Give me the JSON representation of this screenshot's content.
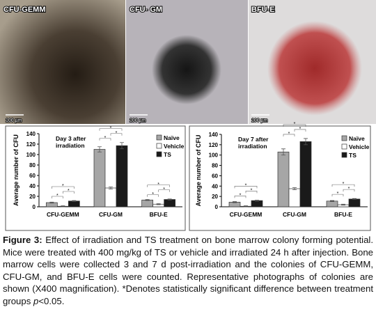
{
  "photos": [
    {
      "label": "CFU-GEMM",
      "scale": "100 µm"
    },
    {
      "label": "CFU- GM",
      "scale": "100 µm"
    },
    {
      "label": "BFU-E",
      "scale": "100 µm"
    }
  ],
  "chart_data": [
    {
      "type": "bar",
      "annotation": [
        "Day 3 after",
        "irradiation"
      ],
      "y_label": "Average number of CFU",
      "categories": [
        "CFU-GEMM",
        "CFU-GM",
        "BFU-E"
      ],
      "series": [
        {
          "name": "Naïve",
          "color": "#a6a6a6",
          "values": [
            8,
            110,
            13
          ],
          "errors": [
            1,
            5,
            1
          ]
        },
        {
          "name": "Vehicle",
          "color": "#ffffff",
          "values": [
            1,
            36,
            5
          ],
          "errors": [
            1,
            2,
            1
          ]
        },
        {
          "name": "TS",
          "color": "#1a1a1a",
          "values": [
            11,
            117,
            14
          ],
          "errors": [
            1,
            6,
            1
          ]
        }
      ],
      "ylim": [
        0,
        140
      ],
      "yticks": [
        0,
        20,
        40,
        60,
        80,
        100,
        120,
        140
      ],
      "significance": "*"
    },
    {
      "type": "bar",
      "annotation": [
        "Day 7 after",
        "irradiation"
      ],
      "y_label": "Average number of CFU",
      "categories": [
        "CFU-GEMM",
        "CFU-GM",
        "BFU-E"
      ],
      "series": [
        {
          "name": "Naïve",
          "color": "#a6a6a6",
          "values": [
            9,
            106,
            11
          ],
          "errors": [
            1,
            6,
            1
          ]
        },
        {
          "name": "Vehicle",
          "color": "#ffffff",
          "values": [
            1,
            35,
            4
          ],
          "errors": [
            1,
            2,
            1
          ]
        },
        {
          "name": "TS",
          "color": "#1a1a1a",
          "values": [
            12,
            126,
            15
          ],
          "errors": [
            1,
            6,
            1
          ]
        }
      ],
      "ylim": [
        0,
        140
      ],
      "yticks": [
        0,
        20,
        40,
        60,
        80,
        100,
        120,
        140
      ],
      "significance": "*"
    }
  ],
  "caption": {
    "label": "Figure 3:",
    "text": " Effect of irradiation and TS treatment on bone marrow colony forming potential. Mice were treated with 400 mg/kg of TS or vehicle and irradiated 24 h after injection. Bone marrow cells were collected 3 and 7 d post-irradiation and the colonies of CFU-GEMM, CFU-GM, and BFU-E cells were counted. Representative photographs of colonies are shown (X400 magnification). *Denotes statistically significant difference between treatment groups ",
    "italic": "p",
    "end": "<0.05."
  }
}
